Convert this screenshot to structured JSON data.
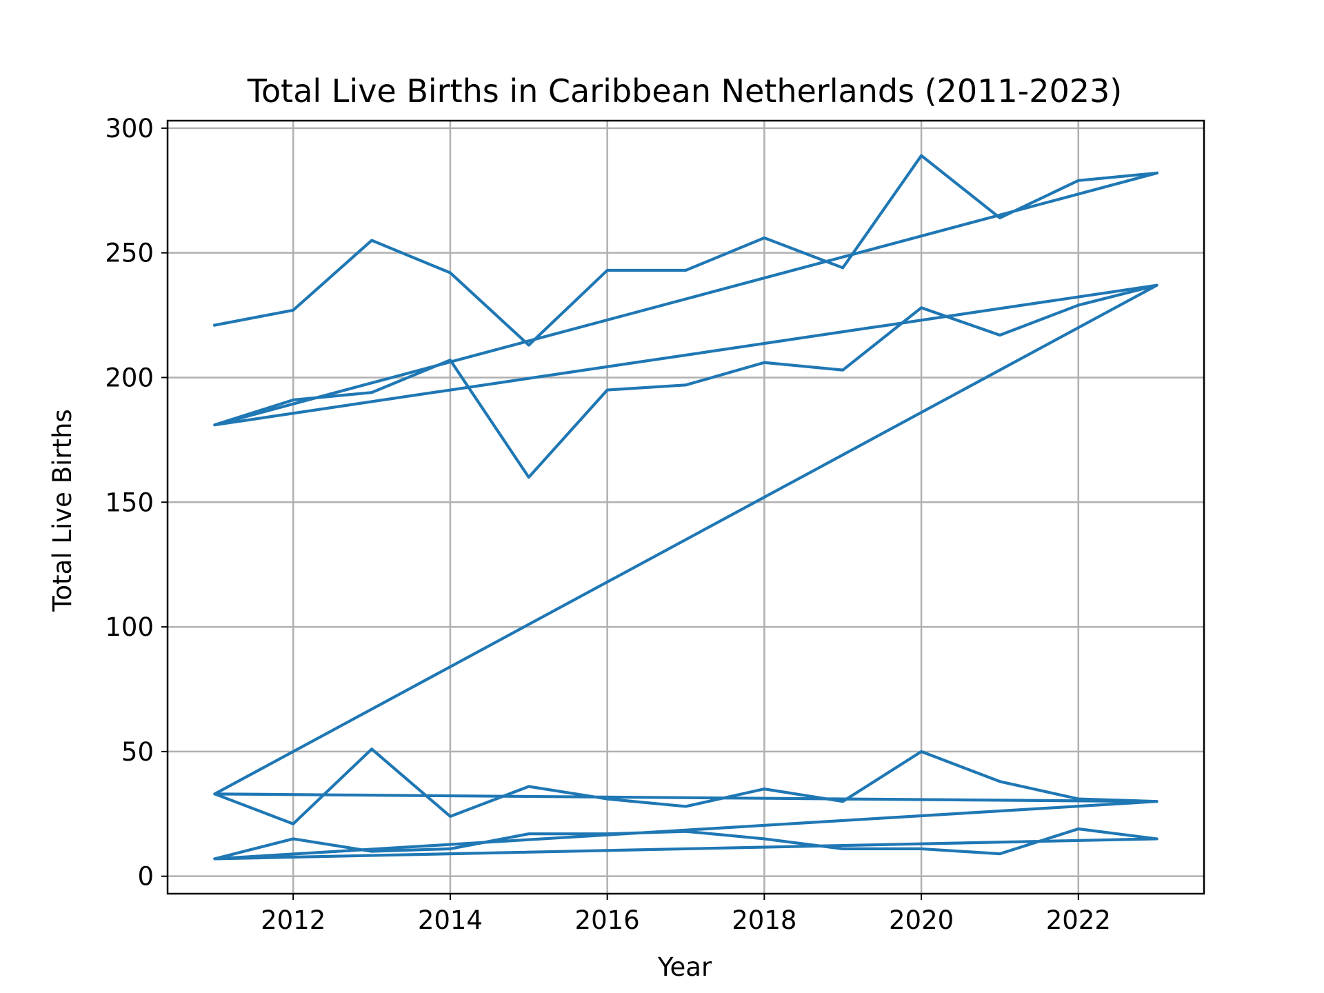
{
  "chart_data": {
    "type": "line",
    "title": "Total Live Births in Caribbean Netherlands (2011-2023)",
    "xlabel": "Year",
    "ylabel": "Total Live Births",
    "xlim": [
      2010.4,
      2023.6
    ],
    "ylim": [
      -7,
      303
    ],
    "xticks": [
      2012,
      2014,
      2016,
      2018,
      2020,
      2022
    ],
    "yticks": [
      0,
      50,
      100,
      150,
      200,
      250,
      300
    ],
    "grid": true,
    "legend": "none",
    "line_color": "#1f77b4",
    "series": [
      {
        "x": [
          2011,
          2012,
          2013,
          2014,
          2015,
          2016,
          2017,
          2018,
          2019,
          2020,
          2021,
          2022,
          2023,
          2011,
          2012,
          2013,
          2014,
          2015,
          2016,
          2017,
          2018,
          2019,
          2020,
          2021,
          2022,
          2023,
          2011,
          2012,
          2013,
          2014,
          2015,
          2016,
          2017,
          2018,
          2019,
          2020,
          2021,
          2022,
          2023,
          2011,
          2012,
          2013,
          2014,
          2015,
          2016,
          2017,
          2018,
          2019,
          2020,
          2021,
          2022,
          2023,
          2011,
          2023,
          2011,
          2023,
          2011,
          2023
        ],
        "values": [
          221,
          227,
          255,
          242,
          213,
          243,
          243,
          256,
          244,
          289,
          264,
          279,
          282,
          181,
          191,
          194,
          207,
          160,
          195,
          197,
          206,
          203,
          228,
          217,
          229,
          237,
          33,
          21,
          51,
          24,
          36,
          31,
          28,
          35,
          30,
          50,
          38,
          31,
          30,
          7,
          15,
          10,
          11,
          17,
          17,
          18,
          15,
          11,
          11,
          9,
          19,
          15,
          7,
          30,
          33,
          237,
          181,
          282
        ]
      }
    ]
  }
}
